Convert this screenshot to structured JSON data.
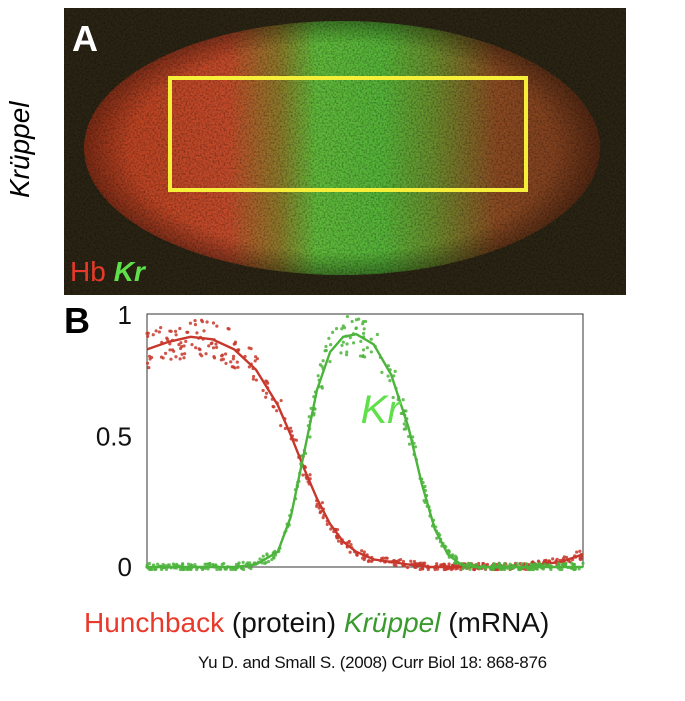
{
  "panel_a": {
    "letter": "A",
    "side_label": "Krüppel",
    "legend": {
      "hb": "Hb",
      "kr": "Kr"
    },
    "colors": {
      "hb": "#e8392a",
      "kr": "#5fe04a",
      "box": "#f6ef3a"
    }
  },
  "panel_b": {
    "letter": "B"
  },
  "chart_data": {
    "type": "line",
    "title": "",
    "xlabel": "",
    "ylabel": "",
    "ylim": [
      0,
      1
    ],
    "xlim": [
      0,
      1
    ],
    "yticks": [
      "1",
      "0.5",
      "0"
    ],
    "grid": false,
    "annotation": "Kr",
    "series": [
      {
        "key": "hb",
        "color": "#c8372c",
        "x": [
          0.0,
          0.05,
          0.1,
          0.15,
          0.2,
          0.25,
          0.3,
          0.33,
          0.36,
          0.39,
          0.42,
          0.45,
          0.48,
          0.52,
          0.56,
          0.6,
          0.65,
          0.7,
          0.75,
          0.8,
          0.85,
          0.9,
          0.95,
          1.0
        ],
        "y": [
          0.86,
          0.89,
          0.91,
          0.9,
          0.86,
          0.78,
          0.64,
          0.52,
          0.39,
          0.27,
          0.17,
          0.1,
          0.06,
          0.03,
          0.02,
          0.01,
          0.0,
          0.0,
          0.0,
          0.0,
          0.0,
          0.01,
          0.02,
          0.05
        ]
      },
      {
        "key": "kr",
        "color": "#4cb43c",
        "x": [
          0.0,
          0.1,
          0.2,
          0.25,
          0.3,
          0.33,
          0.36,
          0.39,
          0.42,
          0.45,
          0.48,
          0.52,
          0.56,
          0.6,
          0.63,
          0.66,
          0.69,
          0.72,
          0.75,
          0.8,
          0.9,
          1.0
        ],
        "y": [
          0.0,
          0.0,
          0.0,
          0.01,
          0.06,
          0.2,
          0.45,
          0.7,
          0.85,
          0.91,
          0.92,
          0.88,
          0.76,
          0.55,
          0.33,
          0.15,
          0.05,
          0.01,
          0.0,
          0.0,
          0.0,
          0.0
        ]
      }
    ]
  },
  "caption": {
    "hb": "Hunchback",
    "hb_suffix": " (protein) ",
    "kr": "Krüppel",
    "kr_suffix": " (mRNA)"
  },
  "citation": "Yu D. and Small S. (2008) Curr Biol 18: 868-876"
}
